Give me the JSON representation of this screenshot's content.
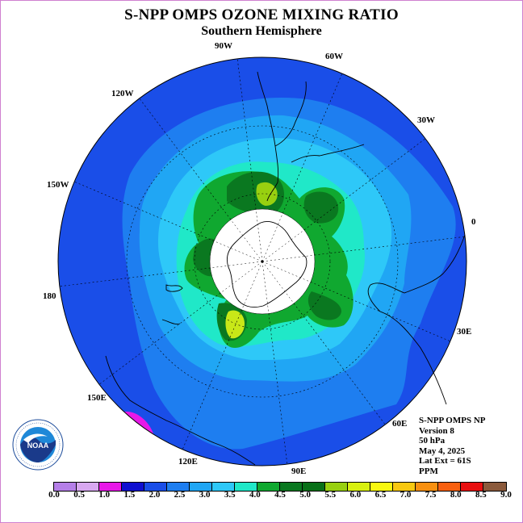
{
  "title": "S-NPP OMPS OZONE MIXING RATIO",
  "subtitle": "Southern Hemisphere",
  "longitude_labels": [
    "90W",
    "60W",
    "30W",
    "0",
    "30E",
    "60E",
    "90E",
    "120E",
    "150E",
    "180",
    "150W",
    "120W"
  ],
  "info": {
    "line1": "S-NPP OMPS NP",
    "line2": "Version 8",
    "line3": "50 hPa",
    "line4": "May 4, 2025",
    "line5": "Lat Ext = 61S",
    "line6": "PPM"
  },
  "colorbar": {
    "ticks": [
      "0.0",
      "0.5",
      "1.0",
      "1.5",
      "2.0",
      "2.5",
      "3.0",
      "3.5",
      "4.0",
      "4.5",
      "5.0",
      "5.5",
      "6.0",
      "6.5",
      "7.0",
      "7.5",
      "8.0",
      "8.5",
      "9.0"
    ],
    "colors": [
      "#b57fe8",
      "#d8a8f0",
      "#e818e8",
      "#1010d0",
      "#1a4ee8",
      "#1e7ef0",
      "#20a6f4",
      "#2ec8f8",
      "#20e8c8",
      "#10a830",
      "#0a7820",
      "#087018",
      "#98d010",
      "#d8f010",
      "#f8f810",
      "#f8c810",
      "#f89010",
      "#f86010",
      "#e81010",
      "#8b5a3c"
    ]
  },
  "logo": {
    "name": "NOAA",
    "ring_text": "NATIONAL OCEANIC AND ATMOSPHERIC ADMINISTRATION · U.S. DEPARTMENT OF COMMERCE"
  },
  "map_colors": {
    "background_band": "#1a4ee8",
    "outer_band": "#1e7ef0",
    "mid_band": "#20a6f4",
    "inner_band": "#2ec8f8",
    "teal_band": "#20e8c8",
    "green_band": "#10a830",
    "dark_green_band": "#0a7820",
    "yellow_green": "#98d010",
    "bright_yellow_green": "#c8e818",
    "magenta_patch": "#e818e8",
    "polar_mask": "#ffffff"
  }
}
